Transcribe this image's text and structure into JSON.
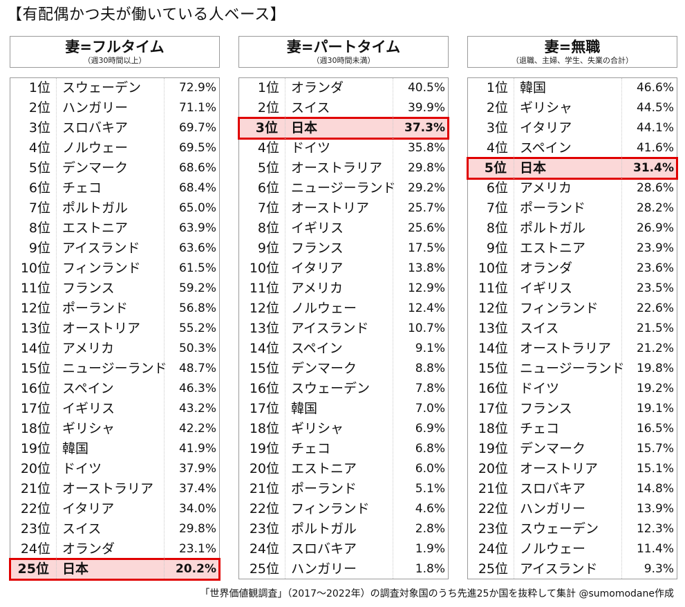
{
  "title": "【有配偶かつ夫が働いている人ベース】",
  "footer": "「世界価値観調査」（2017～2022年）の調査対象国のうち先進25か国を抜粋して集計 @sumomodane作成",
  "highlight_color": "#e00000",
  "highlight_fill": "#fbd8d8",
  "chart_data": [
    {
      "type": "table",
      "title": "妻=フルタイム",
      "subtitle": "（週30時間以上）",
      "highlight_rank": 25,
      "rows": [
        {
          "rank": "1位",
          "country": "スウェーデン",
          "value": "72.9%"
        },
        {
          "rank": "2位",
          "country": "ハンガリー",
          "value": "71.1%"
        },
        {
          "rank": "3位",
          "country": "スロバキア",
          "value": "69.7%"
        },
        {
          "rank": "4位",
          "country": "ノルウェー",
          "value": "69.5%"
        },
        {
          "rank": "5位",
          "country": "デンマーク",
          "value": "68.6%"
        },
        {
          "rank": "6位",
          "country": "チェコ",
          "value": "68.4%"
        },
        {
          "rank": "7位",
          "country": "ポルトガル",
          "value": "65.0%"
        },
        {
          "rank": "8位",
          "country": "エストニア",
          "value": "63.9%"
        },
        {
          "rank": "9位",
          "country": "アイスランド",
          "value": "63.6%"
        },
        {
          "rank": "10位",
          "country": "フィンランド",
          "value": "61.5%"
        },
        {
          "rank": "11位",
          "country": "フランス",
          "value": "59.2%"
        },
        {
          "rank": "12位",
          "country": "ポーランド",
          "value": "56.8%"
        },
        {
          "rank": "13位",
          "country": "オーストリア",
          "value": "55.2%"
        },
        {
          "rank": "14位",
          "country": "アメリカ",
          "value": "50.3%"
        },
        {
          "rank": "15位",
          "country": "ニュージーランド",
          "value": "48.7%"
        },
        {
          "rank": "16位",
          "country": "スペイン",
          "value": "46.3%"
        },
        {
          "rank": "17位",
          "country": "イギリス",
          "value": "43.2%"
        },
        {
          "rank": "18位",
          "country": "ギリシャ",
          "value": "42.2%"
        },
        {
          "rank": "19位",
          "country": "韓国",
          "value": "41.9%"
        },
        {
          "rank": "20位",
          "country": "ドイツ",
          "value": "37.9%"
        },
        {
          "rank": "21位",
          "country": "オーストラリア",
          "value": "37.4%"
        },
        {
          "rank": "22位",
          "country": "イタリア",
          "value": "34.0%"
        },
        {
          "rank": "23位",
          "country": "スイス",
          "value": "29.8%"
        },
        {
          "rank": "24位",
          "country": "オランダ",
          "value": "23.1%"
        },
        {
          "rank": "25位",
          "country": "日本",
          "value": "20.2%"
        }
      ]
    },
    {
      "type": "table",
      "title": "妻=パートタイム",
      "subtitle": "（週30時間未満）",
      "highlight_rank": 3,
      "rows": [
        {
          "rank": "1位",
          "country": "オランダ",
          "value": "40.5%"
        },
        {
          "rank": "2位",
          "country": "スイス",
          "value": "39.9%"
        },
        {
          "rank": "3位",
          "country": "日本",
          "value": "37.3%"
        },
        {
          "rank": "4位",
          "country": "ドイツ",
          "value": "35.8%"
        },
        {
          "rank": "5位",
          "country": "オーストラリア",
          "value": "29.8%"
        },
        {
          "rank": "6位",
          "country": "ニュージーランド",
          "value": "29.2%"
        },
        {
          "rank": "7位",
          "country": "オーストリア",
          "value": "25.7%"
        },
        {
          "rank": "8位",
          "country": "イギリス",
          "value": "25.6%"
        },
        {
          "rank": "9位",
          "country": "フランス",
          "value": "17.5%"
        },
        {
          "rank": "10位",
          "country": "イタリア",
          "value": "13.8%"
        },
        {
          "rank": "11位",
          "country": "アメリカ",
          "value": "12.9%"
        },
        {
          "rank": "12位",
          "country": "ノルウェー",
          "value": "12.4%"
        },
        {
          "rank": "13位",
          "country": "アイスランド",
          "value": "10.7%"
        },
        {
          "rank": "14位",
          "country": "スペイン",
          "value": "9.1%"
        },
        {
          "rank": "15位",
          "country": "デンマーク",
          "value": "8.8%"
        },
        {
          "rank": "16位",
          "country": "スウェーデン",
          "value": "7.8%"
        },
        {
          "rank": "17位",
          "country": "韓国",
          "value": "7.0%"
        },
        {
          "rank": "18位",
          "country": "ギリシャ",
          "value": "6.9%"
        },
        {
          "rank": "19位",
          "country": "チェコ",
          "value": "6.8%"
        },
        {
          "rank": "20位",
          "country": "エストニア",
          "value": "6.0%"
        },
        {
          "rank": "21位",
          "country": "ポーランド",
          "value": "5.1%"
        },
        {
          "rank": "22位",
          "country": "フィンランド",
          "value": "4.6%"
        },
        {
          "rank": "23位",
          "country": "ポルトガル",
          "value": "2.8%"
        },
        {
          "rank": "24位",
          "country": "スロバキア",
          "value": "1.9%"
        },
        {
          "rank": "25位",
          "country": "ハンガリー",
          "value": "1.8%"
        }
      ]
    },
    {
      "type": "table",
      "title": "妻=無職",
      "subtitle": "（退職、主婦、学生、失業の合計）",
      "highlight_rank": 5,
      "rows": [
        {
          "rank": "1位",
          "country": "韓国",
          "value": "46.6%"
        },
        {
          "rank": "2位",
          "country": "ギリシャ",
          "value": "44.5%"
        },
        {
          "rank": "3位",
          "country": "イタリア",
          "value": "44.1%"
        },
        {
          "rank": "4位",
          "country": "スペイン",
          "value": "41.6%"
        },
        {
          "rank": "5位",
          "country": "日本",
          "value": "31.4%"
        },
        {
          "rank": "6位",
          "country": "アメリカ",
          "value": "28.6%"
        },
        {
          "rank": "7位",
          "country": "ポーランド",
          "value": "28.2%"
        },
        {
          "rank": "8位",
          "country": "ポルトガル",
          "value": "26.9%"
        },
        {
          "rank": "9位",
          "country": "エストニア",
          "value": "23.9%"
        },
        {
          "rank": "10位",
          "country": "オランダ",
          "value": "23.6%"
        },
        {
          "rank": "11位",
          "country": "イギリス",
          "value": "23.5%"
        },
        {
          "rank": "12位",
          "country": "フィンランド",
          "value": "22.6%"
        },
        {
          "rank": "13位",
          "country": "スイス",
          "value": "21.5%"
        },
        {
          "rank": "14位",
          "country": "オーストラリア",
          "value": "21.2%"
        },
        {
          "rank": "15位",
          "country": "ニュージーランド",
          "value": "19.8%"
        },
        {
          "rank": "16位",
          "country": "ドイツ",
          "value": "19.2%"
        },
        {
          "rank": "17位",
          "country": "フランス",
          "value": "19.1%"
        },
        {
          "rank": "18位",
          "country": "チェコ",
          "value": "16.5%"
        },
        {
          "rank": "19位",
          "country": "デンマーク",
          "value": "15.7%"
        },
        {
          "rank": "20位",
          "country": "オーストリア",
          "value": "15.1%"
        },
        {
          "rank": "21位",
          "country": "スロバキア",
          "value": "14.8%"
        },
        {
          "rank": "22位",
          "country": "ハンガリー",
          "value": "13.9%"
        },
        {
          "rank": "23位",
          "country": "スウェーデン",
          "value": "12.3%"
        },
        {
          "rank": "24位",
          "country": "ノルウェー",
          "value": "11.4%"
        },
        {
          "rank": "25位",
          "country": "アイスランド",
          "value": "9.3%"
        }
      ]
    }
  ]
}
